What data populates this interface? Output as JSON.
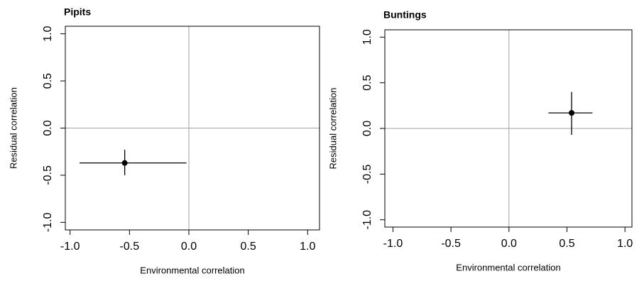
{
  "chart_data": [
    {
      "type": "scatter",
      "title": "Pipits",
      "x_label": "Environmental correlation",
      "y_label": "Residual correlation",
      "xlim": [
        -1.04,
        1.1
      ],
      "ylim": [
        -1.08,
        1.08
      ],
      "xticks": [
        {
          "value": -1,
          "label": "-1.0"
        },
        {
          "value": -0.5,
          "label": "-0.5"
        },
        {
          "value": 0,
          "label": "0.0"
        },
        {
          "value": 0.5,
          "label": "0.5"
        },
        {
          "value": 1,
          "label": "1.0"
        }
      ],
      "yticks": [
        {
          "value": -1,
          "label": "-1.0"
        },
        {
          "value": -0.5,
          "label": "-0.5"
        },
        {
          "value": 0,
          "label": "0.0"
        },
        {
          "value": 0.5,
          "label": "0.5"
        },
        {
          "value": 1,
          "label": "1.0"
        }
      ],
      "reference_lines": {
        "x": 0,
        "y": 0,
        "color": "#a0a0a0"
      },
      "series": [
        {
          "color": "#000000",
          "x": [
            -0.54
          ],
          "values": [
            -0.37
          ],
          "x_lower": [
            -0.92
          ],
          "x_upper": [
            -0.02
          ],
          "y_lower": [
            -0.5
          ],
          "y_upper": [
            -0.23
          ]
        }
      ]
    },
    {
      "type": "scatter",
      "title": "Buntings",
      "x_label": "Environmental correlation",
      "y_label": "Residual correlation",
      "xlim": [
        -1.07,
        1.06
      ],
      "ylim": [
        -1.08,
        1.08
      ],
      "xticks": [
        {
          "value": -1,
          "label": "-1.0"
        },
        {
          "value": -0.5,
          "label": "-0.5"
        },
        {
          "value": 0,
          "label": "0.0"
        },
        {
          "value": 0.5,
          "label": "0.5"
        },
        {
          "value": 1,
          "label": "1.0"
        }
      ],
      "yticks": [
        {
          "value": -1,
          "label": "-1.0"
        },
        {
          "value": -0.5,
          "label": "-0.5"
        },
        {
          "value": 0,
          "label": "0.0"
        },
        {
          "value": 0.5,
          "label": "0.5"
        },
        {
          "value": 1,
          "label": "1.0"
        }
      ],
      "reference_lines": {
        "x": 0,
        "y": 0,
        "color": "#a0a0a0"
      },
      "series": [
        {
          "color": "#000000",
          "x": [
            0.54
          ],
          "values": [
            0.17
          ],
          "x_lower": [
            0.34
          ],
          "x_upper": [
            0.72
          ],
          "y_lower": [
            -0.07
          ],
          "y_upper": [
            0.4
          ]
        }
      ]
    }
  ]
}
